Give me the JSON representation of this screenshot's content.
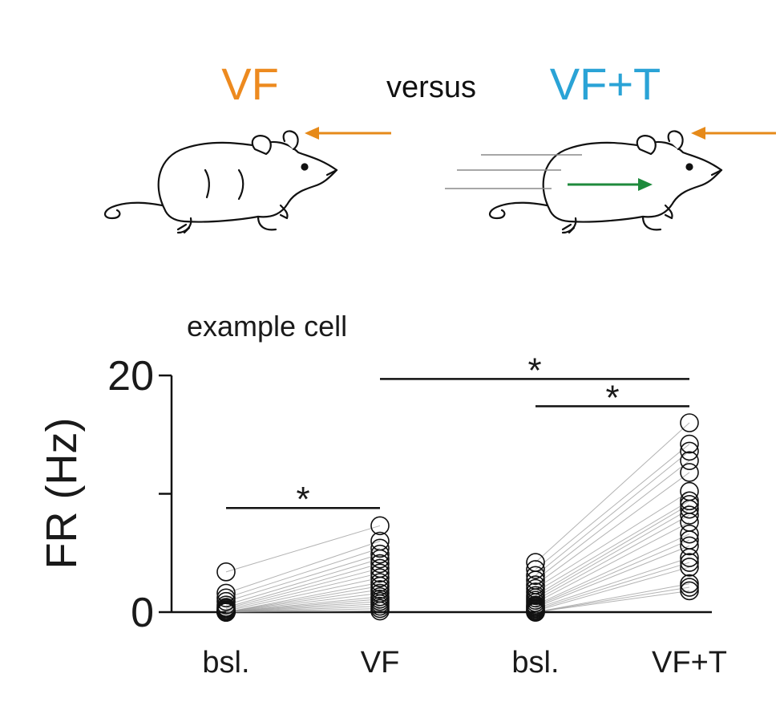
{
  "header": {
    "left_label": "VF",
    "middle_label": "versus",
    "right_label": "VF+T",
    "colors": {
      "vf": "#ED8A1F",
      "vft": "#2AA3D6",
      "treadmill_arrow": "#1E8A3C",
      "stimulus_arrow": "#E68A1A"
    },
    "icons": [
      "mouse-stationary-icon",
      "mouse-running-icon"
    ]
  },
  "chart_data": {
    "type": "scatter",
    "annotation": "example cell",
    "ylabel": "FR (Hz)",
    "ylim": [
      0,
      20
    ],
    "yticks": [
      0,
      10,
      20
    ],
    "ytick_labels": [
      "0",
      "",
      "20"
    ],
    "categories": [
      "bsl.",
      "VF",
      "bsl.",
      "VF+T"
    ],
    "paired_lines": true,
    "pairs": [
      {
        "from": 0,
        "to": 1,
        "values_from": [
          3.4,
          1.6,
          1.2,
          0.9,
          0.6,
          0.4,
          0.3,
          0.2,
          0.1,
          0,
          0,
          0,
          0,
          0,
          0,
          0,
          0,
          0,
          0,
          0
        ],
        "values_to": [
          7.3,
          6.0,
          5.4,
          4.9,
          4.5,
          4.1,
          3.7,
          3.3,
          2.9,
          2.5,
          2.2,
          1.9,
          1.6,
          1.3,
          1.1,
          0.9,
          0.7,
          0.5,
          0.3,
          0.1
        ]
      },
      {
        "from": 2,
        "to": 3,
        "values_from": [
          4.2,
          3.6,
          3.1,
          2.7,
          2.3,
          2.0,
          1.7,
          1.4,
          1.2,
          1.0,
          0.8,
          0.6,
          0.5,
          0.4,
          0.3,
          0.2,
          0.1,
          0,
          0,
          0
        ],
        "values_to": [
          16.0,
          14.2,
          13.6,
          12.8,
          11.8,
          10.2,
          9.4,
          9.1,
          8.7,
          8.2,
          7.6,
          6.6,
          6.1,
          5.6,
          4.6,
          4.2,
          3.8,
          2.4,
          2.1,
          1.8
        ]
      }
    ],
    "significance": [
      {
        "from": 0,
        "to": 1,
        "y": 8.8,
        "label": "*"
      },
      {
        "from": 1,
        "to": 3,
        "y": 19.7,
        "label": "*"
      },
      {
        "from": 2,
        "to": 3,
        "y": 17.4,
        "label": "*"
      }
    ]
  }
}
